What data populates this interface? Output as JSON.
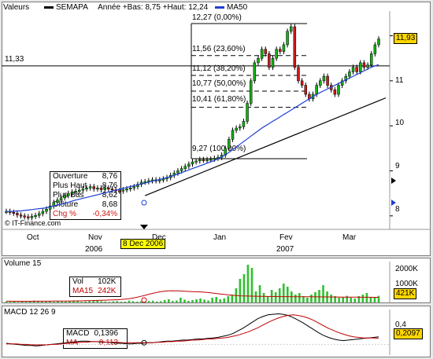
{
  "header": {
    "menu_label": "Valeurs",
    "ticker": "SEMAPA",
    "year_info": "Année +Bas: 8,75 +Haut: 12,24",
    "ma_label": "MA50"
  },
  "colors": {
    "price_up": "#14b014",
    "price_down": "#d01818",
    "ma50": "#1d3fd6",
    "fib": "#000000",
    "last_tag": "#ffd700",
    "date_tag": "#ffff00",
    "volume": "#30c030",
    "ma15": "#c00000",
    "macd_line": "#000000",
    "macd_signal": "#c00000"
  },
  "price_chart": {
    "y_ticks": [
      "12",
      "11",
      "10",
      "9",
      "8"
    ],
    "y_min": 7.7,
    "y_max": 12.55,
    "last_price": "11,93",
    "ref_line_label": "11,33",
    "ref_line_value": 11.33,
    "fib_levels": [
      {
        "label": "12,27 (0,00%)",
        "value": 12.27
      },
      {
        "label": "11,56 (23,60%)",
        "value": 11.56
      },
      {
        "label": "11,12 (38,20%)",
        "value": 11.12
      },
      {
        "label": "10,77 (50,00%)",
        "value": 10.77
      },
      {
        "label": "10,41 (61,80%)",
        "value": 10.41
      },
      {
        "label": "9,27 (100,00%)",
        "value": 9.27
      }
    ],
    "source": "© IT-Finance.com",
    "close_series": [
      8.1,
      8.08,
      8.06,
      8.02,
      8.0,
      7.98,
      7.96,
      7.99,
      8.01,
      8.05,
      8.1,
      8.15,
      8.22,
      8.3,
      8.35,
      8.4,
      8.45,
      8.5,
      8.53,
      8.55,
      8.57,
      8.6,
      8.62,
      8.65,
      8.6,
      8.62,
      8.58,
      8.62,
      8.6,
      8.58,
      8.56,
      8.55,
      8.58,
      8.6,
      8.62,
      8.65,
      8.7,
      8.75,
      8.76,
      8.78,
      8.8,
      8.78,
      8.8,
      8.82,
      8.85,
      8.9,
      8.95,
      9.0,
      9.05,
      9.1,
      9.15,
      9.2,
      9.22,
      9.25,
      9.24,
      9.25,
      9.26,
      9.28,
      9.3,
      9.35,
      9.5,
      9.7,
      9.9,
      9.95,
      9.98,
      10.1,
      10.5,
      11.0,
      11.4,
      11.5,
      11.7,
      11.6,
      11.3,
      11.5,
      11.7,
      11.65,
      11.8,
      12.1,
      12.2,
      11.3,
      11.0,
      10.9,
      10.7,
      10.6,
      10.7,
      10.9,
      11.0,
      11.1,
      10.9,
      10.8,
      10.7,
      10.9,
      11.0,
      11.1,
      11.2,
      11.3,
      11.2,
      11.4,
      11.3,
      11.35,
      11.6,
      11.8,
      11.93
    ],
    "ma50_series": [
      8.1,
      8.1,
      8.1,
      8.11,
      8.11,
      8.12,
      8.13,
      8.14,
      8.15,
      8.16,
      8.17,
      8.18,
      8.2,
      8.22,
      8.24,
      8.26,
      8.28,
      8.3,
      8.33,
      8.35,
      8.37,
      8.39,
      8.41,
      8.43,
      8.45,
      8.47,
      8.49,
      8.51,
      8.53,
      8.55,
      8.57,
      8.59,
      8.61,
      8.63,
      8.65,
      8.67,
      8.69,
      8.71,
      8.73,
      8.75,
      8.77,
      8.79,
      8.81,
      8.83,
      8.85,
      8.87,
      8.9,
      8.93,
      8.96,
      8.99,
      9.02,
      9.05,
      9.08,
      9.11,
      9.14,
      9.17,
      9.2,
      9.23,
      9.27,
      9.31,
      9.36,
      9.41,
      9.47,
      9.53,
      9.59,
      9.65,
      9.71,
      9.77,
      9.83,
      9.89,
      9.95,
      10.0,
      10.05,
      10.1,
      10.15,
      10.2,
      10.25,
      10.3,
      10.35,
      10.4,
      10.45,
      10.5,
      10.55,
      10.6,
      10.65,
      10.7,
      10.74,
      10.78,
      10.82,
      10.86,
      10.9,
      10.94,
      10.98,
      11.02,
      11.06,
      11.1,
      11.14,
      11.18,
      11.22,
      11.26,
      11.3,
      11.33,
      11.36
    ],
    "trend_line": {
      "start_value": 8.45,
      "end_value": 10.62
    }
  },
  "axis": {
    "months": [
      "Oct",
      "Nov",
      "Dec",
      "Jan",
      "Fev",
      "Mar"
    ],
    "years": [
      "2006",
      "2007"
    ],
    "cursor_date": "8 Dec 2006"
  },
  "data_box": {
    "rows": [
      {
        "label": "Ouverture",
        "value": "8,76"
      },
      {
        "label": "Plus Haut",
        "value": "8,76"
      },
      {
        "label": "Plus Bas",
        "value": "8,62"
      },
      {
        "label": "Clôture",
        "value": "8,68"
      },
      {
        "label": "Chg %",
        "value": "-0,34%"
      }
    ]
  },
  "volume_panel": {
    "title": "Volume 15",
    "y_ticks": [
      "2000K",
      "1000K"
    ],
    "y_max": 2600,
    "last_value": "421K",
    "box": {
      "vol_label": "Vol",
      "vol_value": "102K",
      "ma_label": "MA15",
      "ma_value": "242K"
    },
    "bars": [
      60,
      40,
      80,
      30,
      50,
      40,
      70,
      120,
      90,
      60,
      50,
      80,
      40,
      100,
      60,
      50,
      70,
      120,
      80,
      40,
      60,
      90,
      102,
      150,
      80,
      60,
      40,
      70,
      90,
      50,
      60,
      120,
      80,
      50,
      70,
      40,
      90,
      110,
      60,
      80,
      150,
      200,
      90,
      120,
      300,
      180,
      100,
      150,
      200,
      250,
      180,
      120,
      300,
      350,
      200,
      260,
      400,
      500,
      900,
      1500,
      1800,
      2400,
      2200,
      700,
      1100,
      600,
      400,
      800,
      650,
      900,
      1200,
      1000,
      700,
      500,
      600,
      400,
      300,
      500,
      650,
      800,
      1100,
      700,
      500,
      400,
      300,
      350,
      420,
      300,
      250,
      400,
      500,
      600,
      350,
      300,
      421
    ],
    "ma15": [
      80,
      78,
      76,
      75,
      74,
      74,
      75,
      77,
      78,
      79,
      80,
      82,
      84,
      86,
      88,
      90,
      92,
      95,
      98,
      102,
      108,
      115,
      122,
      130,
      138,
      146,
      155,
      165,
      175,
      190,
      210,
      240,
      280,
      330,
      390,
      450,
      520,
      580,
      640,
      690,
      720,
      740,
      745,
      740,
      730,
      715,
      700,
      690,
      680,
      670,
      650,
      630,
      600,
      570,
      540,
      510,
      480,
      460,
      440,
      420,
      410,
      405,
      400,
      395,
      390,
      385,
      380,
      378,
      375,
      372,
      370,
      368,
      366,
      365,
      364,
      362,
      360,
      358,
      356,
      354,
      352,
      350,
      348,
      346,
      344,
      342,
      340,
      338,
      336,
      334,
      332,
      330,
      328,
      326,
      324
    ]
  },
  "macd_panel": {
    "title": "MACD 12 26 9",
    "y_ticks": [
      "0,4"
    ],
    "y_min": -0.2,
    "y_max": 0.65,
    "last_value": "0,2097",
    "box": {
      "macd_label": "MACD",
      "macd_value": "0,1396",
      "ma_label": "MA",
      "ma_value": "0,113"
    },
    "macd": [
      0.02,
      0.01,
      0.0,
      -0.01,
      -0.02,
      -0.02,
      -0.03,
      -0.02,
      -0.01,
      0.0,
      0.01,
      0.02,
      0.03,
      0.04,
      0.05,
      0.06,
      0.06,
      0.05,
      0.05,
      0.04,
      0.04,
      0.03,
      0.02,
      0.02,
      0.01,
      0.01,
      0.02,
      0.02,
      0.03,
      0.03,
      0.04,
      0.05,
      0.06,
      0.06,
      0.07,
      0.08,
      0.08,
      0.09,
      0.1,
      0.1,
      0.11,
      0.12,
      0.13,
      0.15,
      0.17,
      0.2,
      0.25,
      0.3,
      0.36,
      0.42,
      0.48,
      0.52,
      0.55,
      0.56,
      0.57,
      0.56,
      0.54,
      0.5,
      0.45,
      0.4,
      0.34,
      0.28,
      0.22,
      0.17,
      0.13,
      0.1,
      0.08,
      0.07,
      0.08,
      0.09,
      0.1,
      0.11,
      0.12,
      0.13,
      0.14
    ],
    "signal": [
      0.01,
      0.01,
      0.01,
      0.0,
      0.0,
      -0.01,
      -0.01,
      -0.01,
      -0.01,
      0.0,
      0.0,
      0.01,
      0.02,
      0.03,
      0.03,
      0.04,
      0.04,
      0.05,
      0.05,
      0.05,
      0.04,
      0.04,
      0.04,
      0.03,
      0.03,
      0.03,
      0.03,
      0.03,
      0.03,
      0.03,
      0.04,
      0.04,
      0.05,
      0.05,
      0.06,
      0.06,
      0.07,
      0.08,
      0.08,
      0.09,
      0.1,
      0.1,
      0.11,
      0.12,
      0.13,
      0.15,
      0.17,
      0.2,
      0.23,
      0.27,
      0.31,
      0.36,
      0.41,
      0.45,
      0.49,
      0.52,
      0.54,
      0.55,
      0.54,
      0.52,
      0.49,
      0.45,
      0.4,
      0.35,
      0.3,
      0.26,
      0.22,
      0.19,
      0.16,
      0.14,
      0.13,
      0.12,
      0.12,
      0.12,
      0.113
    ]
  }
}
